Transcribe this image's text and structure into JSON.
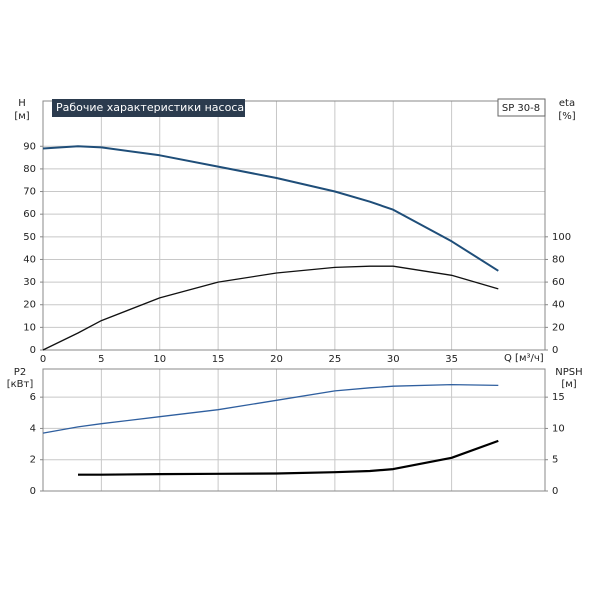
{
  "chart_data": [
    {
      "type": "line",
      "title": "Рабочие характеристики насоса",
      "model": "SP 30-8",
      "y_label": "H",
      "y_unit": "[м]",
      "y2_label": "eta",
      "y2_unit": "[%]",
      "x_label": "Q [м³/ч]",
      "xlim": [
        0,
        43
      ],
      "xticks": [
        0,
        5,
        10,
        15,
        20,
        25,
        30,
        35
      ],
      "ylim": [
        0,
        110
      ],
      "yticks": [
        0,
        10,
        20,
        30,
        40,
        50,
        60,
        70,
        80,
        90
      ],
      "y2lim": [
        0,
        220
      ],
      "y2ticks": [
        0,
        20,
        40,
        60,
        80,
        100
      ],
      "grid": true,
      "x": [
        0,
        3,
        5,
        10,
        15,
        20,
        25,
        28,
        30,
        35,
        39
      ],
      "series": [
        {
          "name": "H",
          "color": "#1f4e79",
          "linewidth": 2,
          "values": [
            89,
            90,
            89.5,
            86,
            81,
            76,
            70,
            65.5,
            62,
            48,
            35
          ]
        },
        {
          "name": "eta",
          "color": "#111111",
          "linewidth": 1.3,
          "axis": "y2",
          "values": [
            0,
            15,
            26,
            46,
            60,
            68,
            73,
            74,
            74,
            66,
            54
          ]
        }
      ]
    },
    {
      "type": "line",
      "y_label": "P2",
      "y_unit": "[кВт]",
      "y2_label": "NPSH",
      "y2_unit": "[м]",
      "xlim": [
        0,
        43
      ],
      "xticks": [
        0,
        5,
        10,
        15,
        20,
        25,
        30,
        35
      ],
      "ylim": [
        0,
        7.8
      ],
      "yticks": [
        0,
        2,
        4,
        6
      ],
      "y2lim": [
        0,
        19.5
      ],
      "y2ticks": [
        0,
        5,
        10,
        15
      ],
      "grid": true,
      "x": [
        0,
        3,
        5,
        10,
        15,
        20,
        25,
        28,
        30,
        35,
        39
      ],
      "series": [
        {
          "name": "P2",
          "color": "#2f5f9f",
          "linewidth": 1.3,
          "values": [
            3.7,
            4.1,
            4.3,
            4.75,
            5.2,
            5.8,
            6.4,
            6.6,
            6.7,
            6.8,
            6.75
          ]
        },
        {
          "name": "NPSH",
          "color": "#000000",
          "linewidth": 2.2,
          "axis": "y2",
          "values": [
            null,
            2.6,
            2.6,
            2.7,
            2.75,
            2.8,
            3.0,
            3.2,
            3.5,
            5.3,
            8.0
          ]
        }
      ]
    }
  ]
}
